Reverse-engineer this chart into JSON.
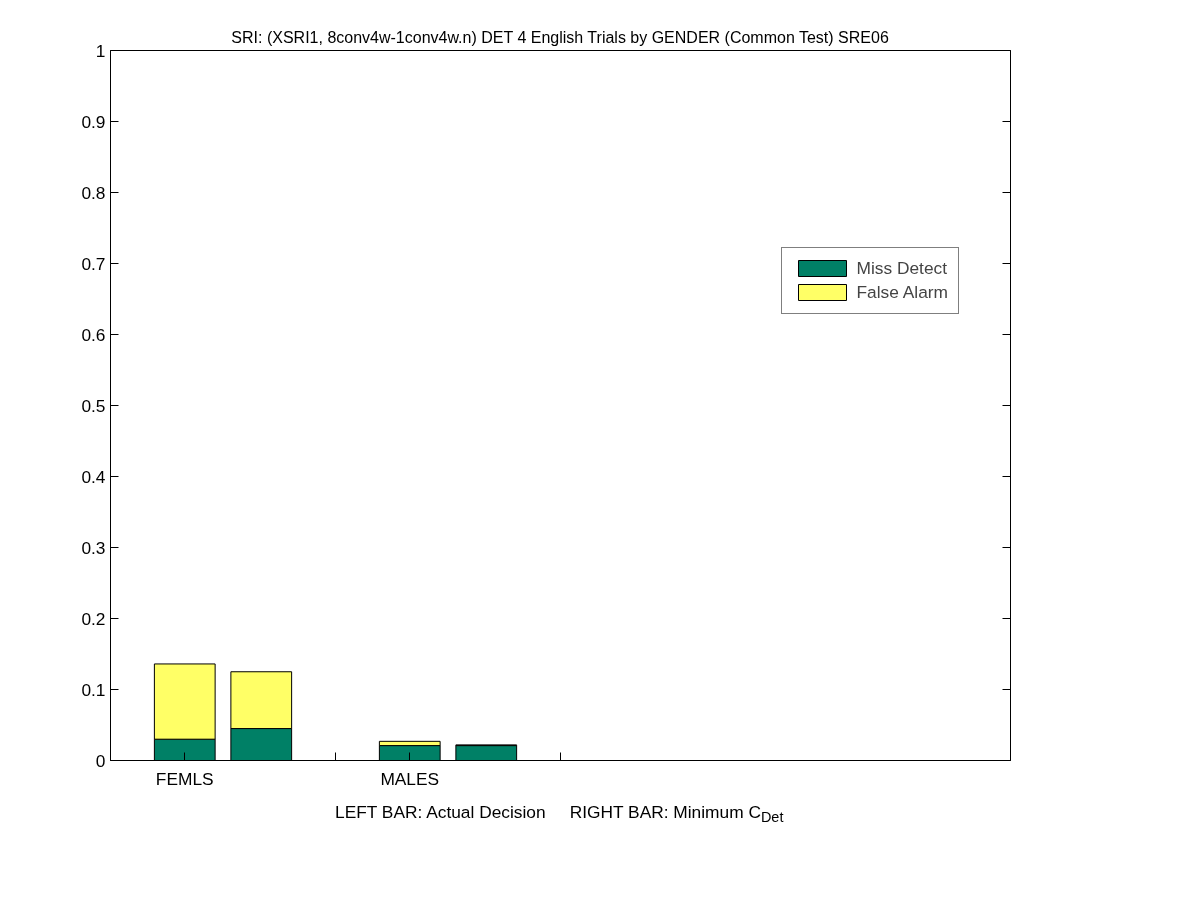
{
  "chart_data": {
    "type": "bar",
    "stacked": true,
    "title": "SRI: (XSRI1, 8conv4w-1conv4w.n) DET 4 English Trials by GENDER (Common Test) SRE06",
    "xlabel": "LEFT BAR: Actual Decision     RIGHT BAR: Minimum C$_{Det}$",
    "categories": [
      "FEMLS",
      null,
      "MALES",
      null
    ],
    "series": [
      {
        "name": "Miss Detect",
        "color": "#008066",
        "values": [
          0.03,
          0.045,
          0.021,
          0.021
        ]
      },
      {
        "name": "False Alarm",
        "color": "#ffff66",
        "values": [
          0.106,
          0.08,
          0.006,
          0.001
        ]
      }
    ],
    "ylim": [
      0,
      1
    ],
    "yticks": [
      0,
      0.1,
      0.2,
      0.3,
      0.4,
      0.5,
      0.6,
      0.7,
      0.8,
      0.9,
      1
    ],
    "grid": false,
    "legend": "right"
  }
}
